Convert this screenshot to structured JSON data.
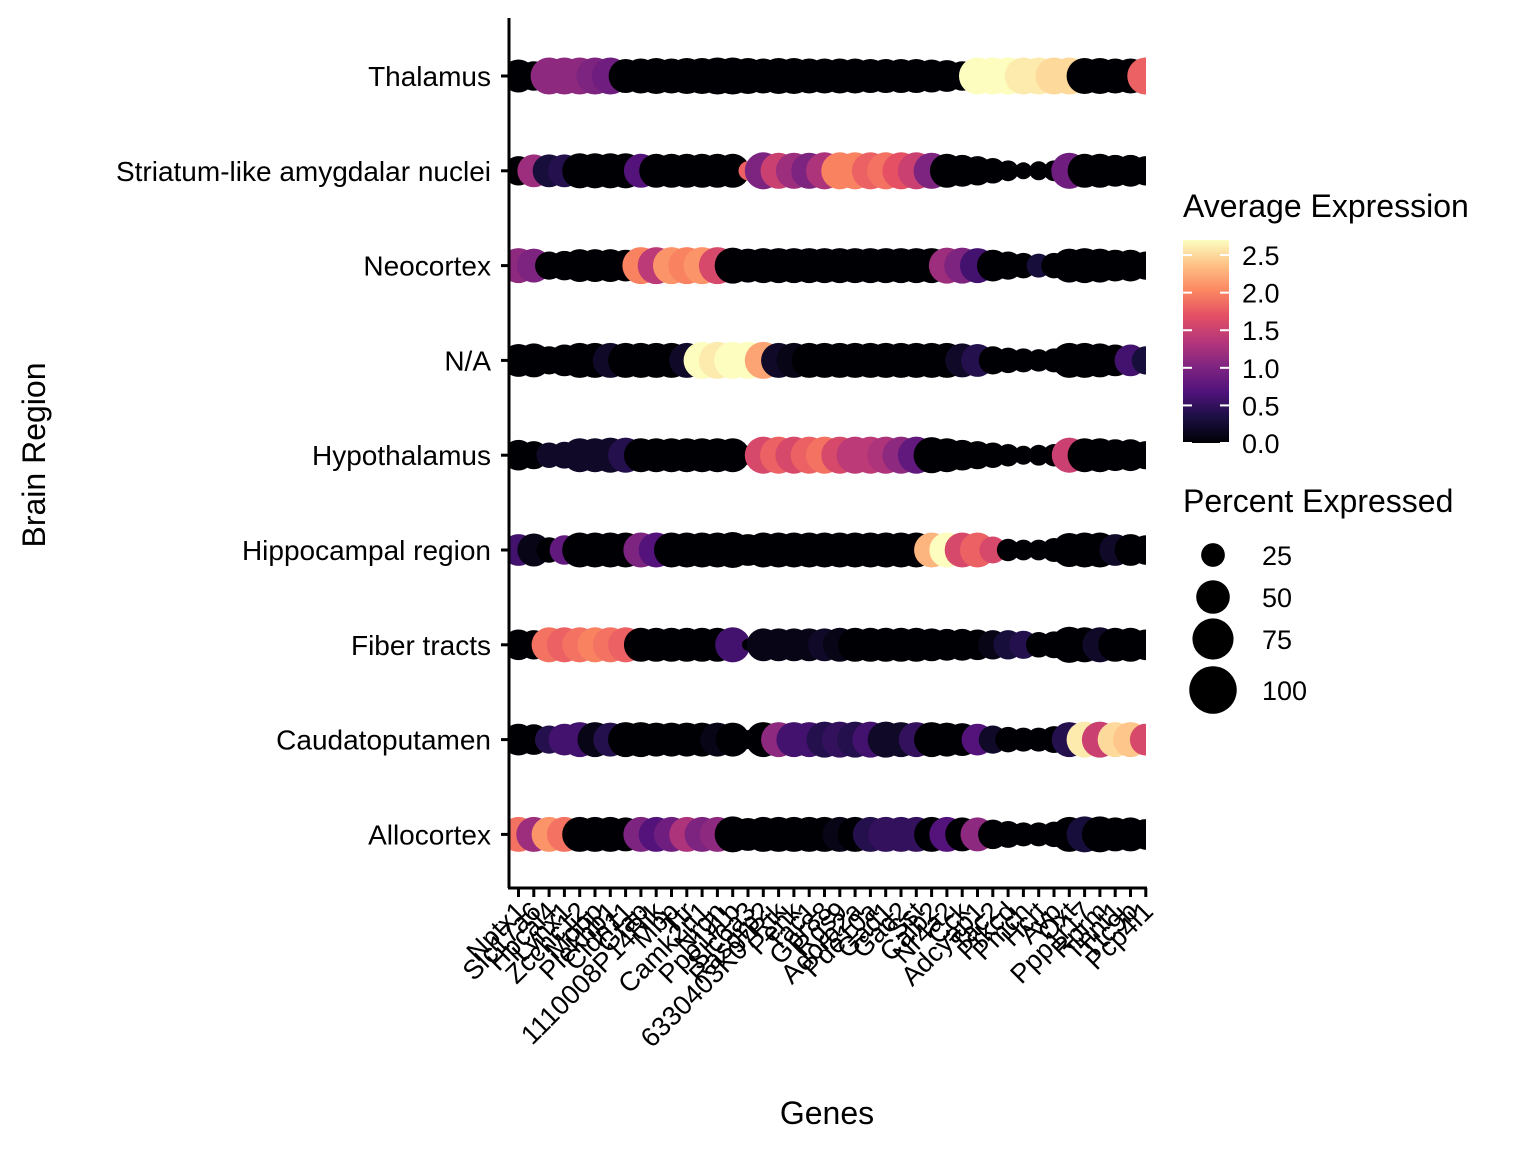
{
  "chart_data": {
    "type": "dotplot",
    "title": "",
    "xlabel": "Genes",
    "ylabel": "Brain Region",
    "genes": [
      "Nptx1",
      "Slc17a6",
      "Hpcal4",
      "Lynx1",
      "Zcchc12",
      "Mobp",
      "Plekhb1",
      "Cldn11",
      "Gfap",
      "1110008P14Rik",
      "Mbp",
      "Ttr",
      "Camk2n1",
      "Nrgn",
      "Ppp1r1b",
      "Slc6a3",
      "Rasgrp2",
      "6330403K07Rik",
      "Penk",
      "Tac1",
      "Gpr88",
      "Rgs9",
      "Adora2a",
      "Pde10a",
      "Gad1",
      "Gad2",
      "Sst",
      "Calb2",
      "Nr4a2",
      "Cck",
      "Adcyap1",
      "Tac2",
      "Prkcd",
      "Pmch",
      "Hcrt",
      "Avp",
      "Oxt",
      "Ppp1r17",
      "Rprm",
      "Tnnt1",
      "Ttc9b",
      "Pcp4l1"
    ],
    "regions": [
      "Thalamus",
      "Striatum-like amygdalar nuclei",
      "Neocortex",
      "N/A",
      "Hypothalamus",
      "Hippocampal region",
      "Fiber tracts",
      "Caudatoputamen",
      "Allocortex"
    ],
    "gene_tick_labels": [
      "Nptx1",
      "Slc17a6",
      "Hpcal4",
      "Lynx1",
      "Zcchc12",
      "Mobp",
      "Plekhb1",
      "Cldn11",
      "Gfap",
      "1110008P14Rik",
      "Mbp",
      "Ttr",
      "Camk2n1",
      "Nrgn",
      "Ppp1r1b",
      "Slc6a3",
      "Rasgrp2",
      "6330403K07Rik",
      "Penk",
      "Tac1",
      "Gpr88",
      "Rgs9",
      "Adora2a",
      "Pde10a",
      "Gad1",
      "Gad2",
      "Sst",
      "Calb2",
      "Nr4a2",
      "Cck",
      "Adcyap1",
      "Tac2",
      "Prkcd",
      "Pmch",
      "Hcrt",
      "Avp",
      "Oxt",
      "Ppp1r17",
      "Rprm",
      "Tnnt1",
      "Ttc9b",
      "Pcp4l1"
    ],
    "legend_color": {
      "title": "Average Expression",
      "ticks": [
        "0.0",
        "0.5",
        "1.0",
        "1.5",
        "2.0",
        "2.5"
      ],
      "tick_values": [
        0.0,
        0.5,
        1.0,
        1.5,
        2.0,
        2.5
      ],
      "range": [
        0,
        2.7
      ],
      "colormap": "magma"
    },
    "legend_size": {
      "title": "Percent Expressed",
      "labels": [
        "25",
        "50",
        "75",
        "100"
      ],
      "values": [
        25,
        50,
        75,
        100
      ]
    },
    "avg_expression": [
      [
        0.0,
        0.0,
        1.1,
        1.1,
        1.1,
        1.0,
        0.9,
        0.0,
        0.0,
        0.0,
        0.0,
        0.0,
        0.0,
        0.0,
        0.0,
        0.0,
        0.0,
        0.0,
        0.0,
        0.0,
        0.0,
        0.0,
        0.0,
        0.0,
        0.0,
        0.0,
        0.0,
        0.0,
        0.0,
        0.0,
        2.7,
        2.7,
        2.7,
        2.6,
        2.6,
        2.5,
        2.5,
        0.0,
        0.0,
        0.0,
        0.0,
        1.8
      ],
      [
        0.0,
        1.2,
        0.3,
        0.4,
        0.0,
        0.0,
        0.0,
        0.0,
        0.7,
        0.0,
        0.0,
        0.0,
        0.0,
        0.0,
        0.0,
        1.8,
        1.0,
        1.5,
        1.2,
        1.0,
        1.3,
        2.0,
        2.0,
        1.8,
        1.9,
        1.7,
        1.5,
        1.0,
        0.0,
        0.0,
        0.0,
        0.0,
        0.0,
        0.0,
        0.0,
        0.0,
        0.9,
        0.0,
        0.0,
        0.0,
        0.0,
        0.0
      ],
      [
        1.1,
        1.0,
        0.0,
        0.0,
        0.0,
        0.0,
        0.0,
        0.0,
        2.0,
        1.4,
        2.1,
        2.0,
        2.1,
        1.6,
        0.0,
        0.0,
        0.0,
        0.0,
        0.0,
        0.0,
        0.0,
        0.0,
        0.0,
        0.0,
        0.0,
        0.0,
        0.0,
        0.0,
        1.2,
        1.0,
        0.6,
        0.0,
        0.0,
        0.0,
        0.3,
        0.0,
        0.0,
        0.0,
        0.0,
        0.0,
        0.0,
        0.0
      ],
      [
        0.0,
        0.0,
        0.0,
        0.0,
        0.0,
        0.0,
        0.2,
        0.0,
        0.0,
        0.0,
        0.0,
        0.2,
        2.7,
        2.6,
        2.7,
        2.7,
        2.2,
        0.2,
        0.1,
        0.0,
        0.0,
        0.0,
        0.0,
        0.0,
        0.0,
        0.0,
        0.0,
        0.0,
        0.0,
        0.2,
        0.4,
        0.0,
        0.0,
        0.0,
        0.0,
        0.0,
        0.0,
        0.0,
        0.0,
        0.0,
        0.6,
        0.3
      ],
      [
        0.0,
        0.0,
        0.2,
        0.2,
        0.2,
        0.2,
        0.2,
        0.4,
        0.0,
        0.0,
        0.0,
        0.0,
        0.0,
        0.0,
        0.0,
        0.0,
        1.6,
        1.8,
        1.6,
        1.8,
        1.9,
        1.6,
        1.4,
        1.4,
        1.3,
        1.1,
        0.8,
        0.0,
        0.0,
        0.0,
        0.0,
        0.0,
        0.0,
        0.0,
        0.0,
        0.0,
        1.5,
        0.0,
        0.0,
        0.0,
        0.0,
        0.0
      ],
      [
        0.6,
        0.1,
        0.0,
        0.8,
        0.0,
        0.0,
        0.0,
        0.0,
        1.0,
        0.7,
        0.0,
        0.0,
        0.0,
        0.0,
        0.0,
        0.0,
        0.0,
        0.0,
        0.0,
        0.0,
        0.0,
        0.0,
        0.0,
        0.0,
        0.0,
        0.0,
        0.0,
        2.3,
        2.7,
        1.6,
        1.8,
        1.6,
        0.0,
        0.0,
        0.0,
        0.0,
        0.0,
        0.0,
        0.0,
        0.2,
        0.0,
        0.0
      ],
      [
        0.0,
        0.0,
        1.9,
        1.8,
        1.9,
        2.0,
        1.9,
        1.8,
        0.0,
        0.0,
        0.0,
        0.0,
        0.0,
        0.0,
        0.6,
        0.0,
        0.1,
        0.1,
        0.1,
        0.1,
        0.2,
        0.1,
        0.0,
        0.0,
        0.0,
        0.0,
        0.0,
        0.0,
        0.0,
        0.0,
        0.0,
        0.1,
        0.3,
        0.4,
        0.0,
        0.0,
        0.0,
        0.0,
        0.2,
        0.0,
        0.0,
        0.0
      ],
      [
        0.0,
        0.0,
        0.4,
        0.6,
        0.6,
        0.1,
        0.4,
        0.0,
        0.0,
        0.0,
        0.0,
        0.0,
        0.0,
        0.1,
        0.0,
        0.0,
        0.0,
        1.1,
        0.6,
        0.6,
        0.4,
        0.5,
        0.4,
        0.6,
        0.2,
        0.2,
        0.5,
        0.0,
        0.0,
        0.0,
        0.7,
        0.2,
        0.0,
        0.0,
        0.0,
        0.0,
        0.4,
        2.6,
        1.5,
        2.5,
        2.4,
        1.6
      ],
      [
        1.9,
        1.2,
        2.1,
        1.9,
        0.0,
        0.0,
        0.0,
        0.0,
        1.0,
        0.7,
        0.9,
        1.3,
        1.0,
        1.1,
        0.0,
        0.0,
        0.0,
        0.0,
        0.0,
        0.0,
        0.0,
        0.1,
        0.0,
        0.4,
        0.5,
        0.5,
        0.5,
        0.0,
        0.7,
        0.0,
        1.1,
        0.0,
        0.0,
        0.0,
        0.0,
        0.0,
        0.0,
        0.3,
        0.0,
        0.0,
        0.0,
        0.0
      ]
    ],
    "pct_expressed": [
      [
        75,
        60,
        95,
        95,
        95,
        95,
        95,
        80,
        85,
        90,
        85,
        90,
        90,
        95,
        95,
        90,
        85,
        90,
        90,
        85,
        85,
        85,
        85,
        80,
        80,
        80,
        80,
        75,
        70,
        60,
        95,
        95,
        95,
        95,
        95,
        95,
        95,
        90,
        90,
        85,
        85,
        95
      ],
      [
        60,
        75,
        75,
        75,
        85,
        85,
        85,
        85,
        80,
        80,
        80,
        80,
        80,
        80,
        80,
        25,
        95,
        90,
        90,
        90,
        95,
        95,
        95,
        95,
        95,
        95,
        95,
        90,
        80,
        70,
        60,
        45,
        30,
        20,
        25,
        30,
        90,
        80,
        80,
        70,
        70,
        60
      ],
      [
        85,
        80,
        55,
        60,
        75,
        75,
        75,
        70,
        95,
        95,
        95,
        95,
        95,
        95,
        90,
        80,
        85,
        85,
        85,
        85,
        85,
        85,
        85,
        85,
        85,
        85,
        85,
        85,
        90,
        90,
        85,
        70,
        55,
        45,
        40,
        45,
        80,
        85,
        80,
        70,
        70,
        55
      ],
      [
        75,
        80,
        55,
        70,
        85,
        85,
        85,
        85,
        85,
        85,
        85,
        85,
        95,
        95,
        95,
        95,
        95,
        85,
        85,
        85,
        85,
        85,
        85,
        85,
        85,
        85,
        85,
        85,
        85,
        80,
        75,
        55,
        45,
        40,
        35,
        40,
        85,
        85,
        80,
        70,
        70,
        55
      ],
      [
        65,
        55,
        45,
        50,
        80,
        80,
        85,
        85,
        80,
        80,
        80,
        80,
        80,
        80,
        80,
        25,
        95,
        95,
        95,
        95,
        95,
        95,
        95,
        95,
        95,
        95,
        95,
        90,
        80,
        65,
        55,
        45,
        35,
        25,
        30,
        35,
        85,
        80,
        80,
        70,
        70,
        55
      ],
      [
        70,
        75,
        45,
        60,
        85,
        85,
        85,
        85,
        85,
        85,
        85,
        85,
        85,
        85,
        90,
        70,
        85,
        85,
        85,
        85,
        85,
        85,
        85,
        85,
        85,
        85,
        85,
        85,
        85,
        85,
        85,
        50,
        35,
        30,
        30,
        40,
        80,
        85,
        85,
        70,
        70,
        60
      ],
      [
        65,
        60,
        85,
        85,
        85,
        85,
        85,
        85,
        80,
        80,
        80,
        80,
        80,
        80,
        85,
        10,
        75,
        75,
        75,
        75,
        75,
        80,
        80,
        80,
        80,
        80,
        80,
        75,
        70,
        70,
        65,
        60,
        60,
        55,
        45,
        50,
        90,
        85,
        85,
        80,
        80,
        65
      ],
      [
        70,
        65,
        55,
        70,
        85,
        85,
        80,
        85,
        85,
        80,
        80,
        80,
        80,
        80,
        80,
        25,
        85,
        85,
        85,
        85,
        90,
        90,
        90,
        90,
        90,
        85,
        85,
        85,
        80,
        75,
        70,
        55,
        45,
        40,
        40,
        50,
        85,
        90,
        90,
        85,
        85,
        70
      ],
      [
        85,
        85,
        85,
        85,
        85,
        85,
        85,
        80,
        85,
        85,
        85,
        85,
        85,
        85,
        90,
        75,
        85,
        85,
        85,
        85,
        85,
        85,
        85,
        85,
        85,
        85,
        85,
        85,
        85,
        80,
        80,
        60,
        50,
        40,
        40,
        45,
        85,
        90,
        90,
        80,
        80,
        65
      ]
    ]
  }
}
